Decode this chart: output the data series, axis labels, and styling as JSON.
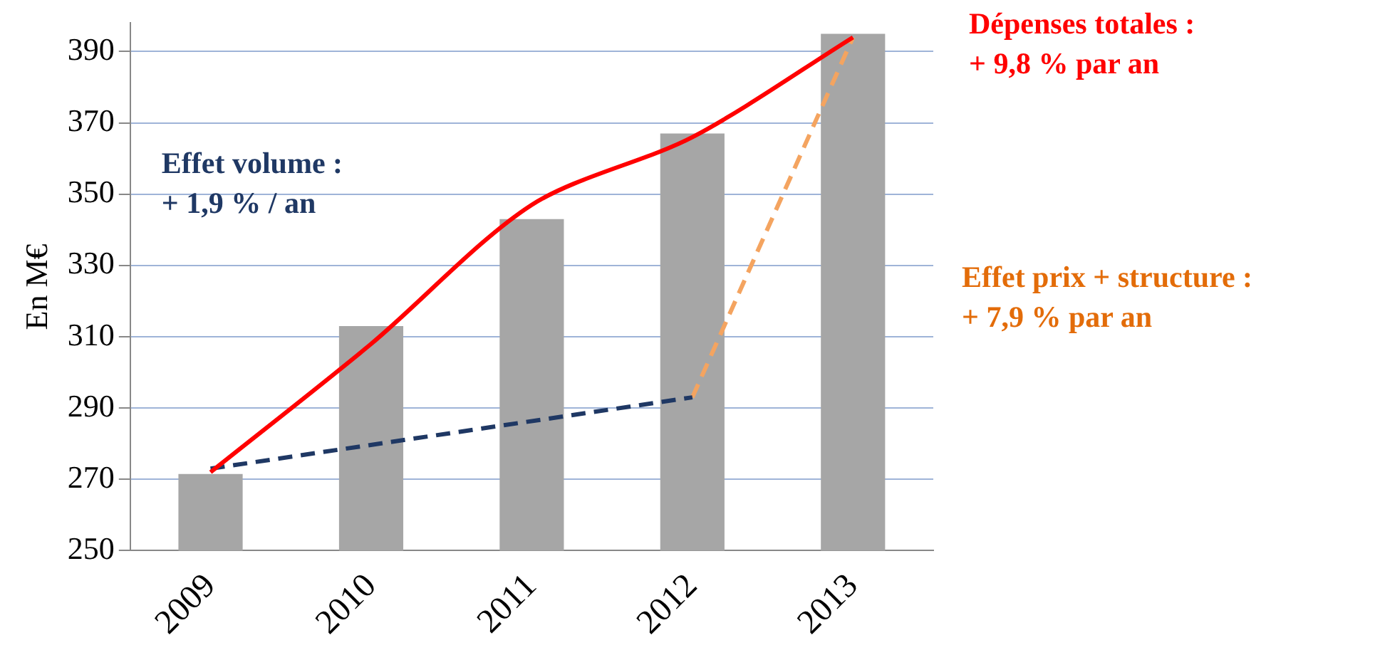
{
  "chart_data": {
    "type": "bar",
    "ylabel": "En M€",
    "categories": [
      "2009",
      "2010",
      "2011",
      "2012",
      "2013"
    ],
    "series": [
      {
        "color": "#a6a6a6",
        "values": [
          271.5,
          313,
          343,
          367,
          395
        ]
      },
      {
        "type": "line",
        "color": "#ff0000",
        "line_style": "solid",
        "values": [
          272,
          308,
          347,
          366,
          394
        ]
      },
      {
        "type": "line",
        "color": "#1f3864",
        "line_style": "dashed",
        "values": [
          273,
          null,
          null,
          293,
          null
        ]
      },
      {
        "type": "line",
        "color": "#f4a460",
        "line_style": "dashed",
        "values": [
          null,
          null,
          null,
          293,
          394
        ]
      }
    ],
    "ylim": [
      250,
      398
    ],
    "yticks": [
      250,
      270,
      290,
      310,
      330,
      350,
      370,
      390
    ],
    "grid": "y",
    "legend": false,
    "marker": "none",
    "annotations": [
      "Dépenses totales :\n+ 9,8 % par an",
      "Effet volume :\n+ 1,9 % / an",
      "Effet prix + structure :\n+ 7,9 % par an"
    ]
  }
}
